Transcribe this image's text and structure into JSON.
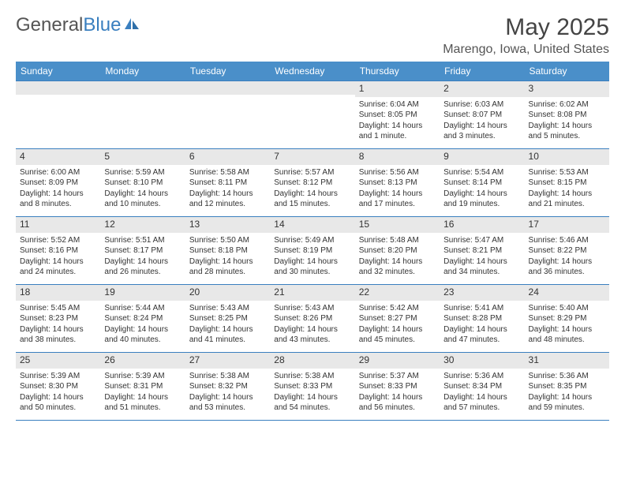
{
  "logo": {
    "text1": "General",
    "text2": "Blue"
  },
  "title": "May 2025",
  "location": "Marengo, Iowa, United States",
  "weekdays": [
    "Sunday",
    "Monday",
    "Tuesday",
    "Wednesday",
    "Thursday",
    "Friday",
    "Saturday"
  ],
  "colors": {
    "header_bg": "#4a8fc9",
    "border": "#3a7fbf",
    "daynum_bg": "#e8e8e8"
  },
  "grid": [
    [
      {
        "n": "",
        "sr": "",
        "ss": "",
        "dl": ""
      },
      {
        "n": "",
        "sr": "",
        "ss": "",
        "dl": ""
      },
      {
        "n": "",
        "sr": "",
        "ss": "",
        "dl": ""
      },
      {
        "n": "",
        "sr": "",
        "ss": "",
        "dl": ""
      },
      {
        "n": "1",
        "sr": "Sunrise: 6:04 AM",
        "ss": "Sunset: 8:05 PM",
        "dl": "Daylight: 14 hours and 1 minute."
      },
      {
        "n": "2",
        "sr": "Sunrise: 6:03 AM",
        "ss": "Sunset: 8:07 PM",
        "dl": "Daylight: 14 hours and 3 minutes."
      },
      {
        "n": "3",
        "sr": "Sunrise: 6:02 AM",
        "ss": "Sunset: 8:08 PM",
        "dl": "Daylight: 14 hours and 5 minutes."
      }
    ],
    [
      {
        "n": "4",
        "sr": "Sunrise: 6:00 AM",
        "ss": "Sunset: 8:09 PM",
        "dl": "Daylight: 14 hours and 8 minutes."
      },
      {
        "n": "5",
        "sr": "Sunrise: 5:59 AM",
        "ss": "Sunset: 8:10 PM",
        "dl": "Daylight: 14 hours and 10 minutes."
      },
      {
        "n": "6",
        "sr": "Sunrise: 5:58 AM",
        "ss": "Sunset: 8:11 PM",
        "dl": "Daylight: 14 hours and 12 minutes."
      },
      {
        "n": "7",
        "sr": "Sunrise: 5:57 AM",
        "ss": "Sunset: 8:12 PM",
        "dl": "Daylight: 14 hours and 15 minutes."
      },
      {
        "n": "8",
        "sr": "Sunrise: 5:56 AM",
        "ss": "Sunset: 8:13 PM",
        "dl": "Daylight: 14 hours and 17 minutes."
      },
      {
        "n": "9",
        "sr": "Sunrise: 5:54 AM",
        "ss": "Sunset: 8:14 PM",
        "dl": "Daylight: 14 hours and 19 minutes."
      },
      {
        "n": "10",
        "sr": "Sunrise: 5:53 AM",
        "ss": "Sunset: 8:15 PM",
        "dl": "Daylight: 14 hours and 21 minutes."
      }
    ],
    [
      {
        "n": "11",
        "sr": "Sunrise: 5:52 AM",
        "ss": "Sunset: 8:16 PM",
        "dl": "Daylight: 14 hours and 24 minutes."
      },
      {
        "n": "12",
        "sr": "Sunrise: 5:51 AM",
        "ss": "Sunset: 8:17 PM",
        "dl": "Daylight: 14 hours and 26 minutes."
      },
      {
        "n": "13",
        "sr": "Sunrise: 5:50 AM",
        "ss": "Sunset: 8:18 PM",
        "dl": "Daylight: 14 hours and 28 minutes."
      },
      {
        "n": "14",
        "sr": "Sunrise: 5:49 AM",
        "ss": "Sunset: 8:19 PM",
        "dl": "Daylight: 14 hours and 30 minutes."
      },
      {
        "n": "15",
        "sr": "Sunrise: 5:48 AM",
        "ss": "Sunset: 8:20 PM",
        "dl": "Daylight: 14 hours and 32 minutes."
      },
      {
        "n": "16",
        "sr": "Sunrise: 5:47 AM",
        "ss": "Sunset: 8:21 PM",
        "dl": "Daylight: 14 hours and 34 minutes."
      },
      {
        "n": "17",
        "sr": "Sunrise: 5:46 AM",
        "ss": "Sunset: 8:22 PM",
        "dl": "Daylight: 14 hours and 36 minutes."
      }
    ],
    [
      {
        "n": "18",
        "sr": "Sunrise: 5:45 AM",
        "ss": "Sunset: 8:23 PM",
        "dl": "Daylight: 14 hours and 38 minutes."
      },
      {
        "n": "19",
        "sr": "Sunrise: 5:44 AM",
        "ss": "Sunset: 8:24 PM",
        "dl": "Daylight: 14 hours and 40 minutes."
      },
      {
        "n": "20",
        "sr": "Sunrise: 5:43 AM",
        "ss": "Sunset: 8:25 PM",
        "dl": "Daylight: 14 hours and 41 minutes."
      },
      {
        "n": "21",
        "sr": "Sunrise: 5:43 AM",
        "ss": "Sunset: 8:26 PM",
        "dl": "Daylight: 14 hours and 43 minutes."
      },
      {
        "n": "22",
        "sr": "Sunrise: 5:42 AM",
        "ss": "Sunset: 8:27 PM",
        "dl": "Daylight: 14 hours and 45 minutes."
      },
      {
        "n": "23",
        "sr": "Sunrise: 5:41 AM",
        "ss": "Sunset: 8:28 PM",
        "dl": "Daylight: 14 hours and 47 minutes."
      },
      {
        "n": "24",
        "sr": "Sunrise: 5:40 AM",
        "ss": "Sunset: 8:29 PM",
        "dl": "Daylight: 14 hours and 48 minutes."
      }
    ],
    [
      {
        "n": "25",
        "sr": "Sunrise: 5:39 AM",
        "ss": "Sunset: 8:30 PM",
        "dl": "Daylight: 14 hours and 50 minutes."
      },
      {
        "n": "26",
        "sr": "Sunrise: 5:39 AM",
        "ss": "Sunset: 8:31 PM",
        "dl": "Daylight: 14 hours and 51 minutes."
      },
      {
        "n": "27",
        "sr": "Sunrise: 5:38 AM",
        "ss": "Sunset: 8:32 PM",
        "dl": "Daylight: 14 hours and 53 minutes."
      },
      {
        "n": "28",
        "sr": "Sunrise: 5:38 AM",
        "ss": "Sunset: 8:33 PM",
        "dl": "Daylight: 14 hours and 54 minutes."
      },
      {
        "n": "29",
        "sr": "Sunrise: 5:37 AM",
        "ss": "Sunset: 8:33 PM",
        "dl": "Daylight: 14 hours and 56 minutes."
      },
      {
        "n": "30",
        "sr": "Sunrise: 5:36 AM",
        "ss": "Sunset: 8:34 PM",
        "dl": "Daylight: 14 hours and 57 minutes."
      },
      {
        "n": "31",
        "sr": "Sunrise: 5:36 AM",
        "ss": "Sunset: 8:35 PM",
        "dl": "Daylight: 14 hours and 59 minutes."
      }
    ]
  ]
}
